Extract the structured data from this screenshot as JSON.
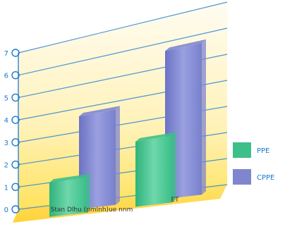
{
  "chart_data": {
    "type": "bar",
    "categories": [
      "Stan Dlhu (pmlnh)ue nnm",
      "ET"
    ],
    "series": [
      {
        "name": "PPE",
        "values": [
          1.4,
          2.5
        ],
        "color": "#3dbf8a"
      },
      {
        "name": "CPPE",
        "values": [
          3.8,
          5.7
        ],
        "color": "#7f86cf"
      }
    ],
    "y_tick_labels": [
      "0",
      "1",
      "2",
      "3",
      "4",
      "5",
      "6",
      "7"
    ],
    "ylim": [
      0,
      7
    ],
    "grid": true,
    "legend_position": "right",
    "colors": {
      "wall_top": "#fffaf0",
      "wall_bottom": "#ffe98a",
      "floor": "#ffd84a",
      "gridline": "#2f84d6",
      "axis_label": "#1a7ad0"
    }
  }
}
